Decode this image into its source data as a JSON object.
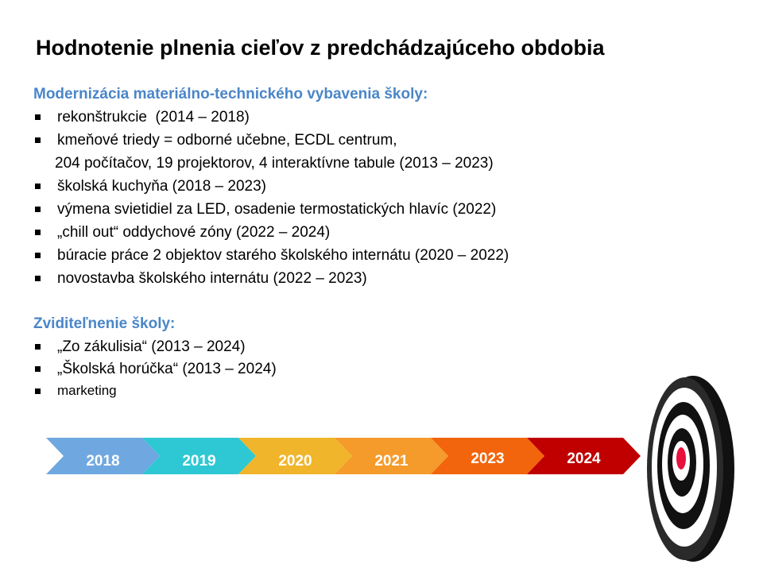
{
  "title": "Hodnotenie plnenia cieľov z predchádzajúceho obdobia",
  "sections": [
    {
      "heading": "Modernizácia materiálno-technického vybavenia školy:",
      "items": [
        [
          "rekonštrukcie  (2014 – 2018)"
        ],
        [
          "kmeňové triedy = odborné učebne, ECDL centrum,",
          "204 počítačov, 19 projektorov, 4 interaktívne tabule (2013 – 2023)"
        ],
        [
          "školská kuchyňa (2018 – 2023)"
        ],
        [
          "výmena svietidiel za LED, osadenie termostatických hlavíc (2022)"
        ],
        [
          "„chill out“ oddychové zóny (2022 – 2024)"
        ],
        [
          "búracie práce 2 objektov starého školského internátu (2020 – 2022)"
        ],
        [
          "novostavba školského internátu (2022 – 2023)"
        ]
      ]
    },
    {
      "heading": "Zviditeľnenie školy:",
      "items": [
        [
          "„Zo zákulisia“ (2013 – 2024)"
        ],
        [
          "„Školská horúčka“ (2013 – 2024)"
        ],
        [
          "marketing"
        ]
      ]
    }
  ],
  "timeline": [
    {
      "label": "2018",
      "color": "#6fa8e0"
    },
    {
      "label": "2019",
      "color": "#2ec8d4"
    },
    {
      "label": "2020",
      "color": "#f0b52b"
    },
    {
      "label": "2021",
      "color": "#f59b2c"
    },
    {
      "label": "2023",
      "color": "#f2650c"
    },
    {
      "label": "2024",
      "color": "#c00000"
    }
  ]
}
